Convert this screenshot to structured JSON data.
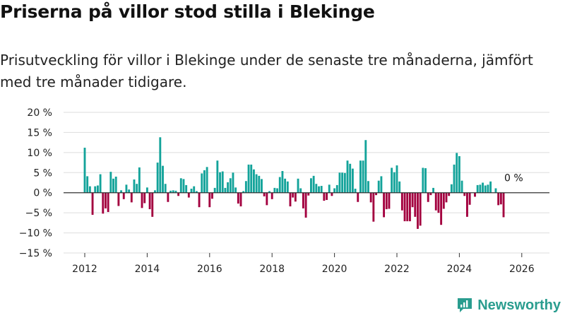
{
  "header": {
    "title": "Priserna på villor stod stilla i Blekinge",
    "subtitle": "Prisutveckling för villor i Blekinge under de senaste tre månaderna, jämfört med tre månader tidigare."
  },
  "brand": {
    "name": "Newsworthy"
  },
  "colors": {
    "positive": "#13a39a",
    "negative": "#a3003f",
    "grid": "#dddddd",
    "zero_line": "#333333",
    "brand": "#2a9d8f"
  },
  "chart_data": {
    "type": "bar",
    "title": "Priserna på villor stod stilla i Blekinge",
    "xlabel": "",
    "ylabel": "",
    "ylim": [
      -15,
      20
    ],
    "yticks": [
      -15,
      -10,
      -5,
      0,
      5,
      10,
      15,
      20
    ],
    "ytick_labels": [
      "−15 %",
      "−10 %",
      "−5 %",
      "0 %",
      "5 %",
      "10 %",
      "15 %",
      "20 %"
    ],
    "xlim": [
      2011.0,
      2027.0
    ],
    "xticks": [
      2012,
      2014,
      2016,
      2018,
      2020,
      2022,
      2024,
      2026
    ],
    "xtick_labels": [
      "2012",
      "2014",
      "2016",
      "2018",
      "2020",
      "2022",
      "2024",
      "2026"
    ],
    "start": {
      "year": 2012,
      "month": 1
    },
    "values": [
      11.2,
      4.1,
      1.6,
      -5.5,
      1.6,
      1.8,
      4.6,
      -5.2,
      -3.9,
      -4.8,
      5.2,
      3.5,
      4.0,
      -3.3,
      0.6,
      -1.6,
      2.0,
      0.8,
      -2.4,
      3.3,
      2.2,
      6.3,
      -3.8,
      -2.6,
      1.3,
      -4.1,
      -6.0,
      0.6,
      7.5,
      13.8,
      6.7,
      2.2,
      -2.3,
      0.5,
      0.6,
      0.5,
      -0.8,
      3.6,
      3.4,
      1.9,
      -1.2,
      1.0,
      1.6,
      0.4,
      -3.6,
      4.8,
      5.6,
      6.4,
      -3.6,
      -1.5,
      1.2,
      8.0,
      5.1,
      5.3,
      1.2,
      2.6,
      3.6,
      5.0,
      1.3,
      -2.7,
      -3.4,
      0.4,
      2.9,
      7.0,
      7.0,
      5.8,
      4.6,
      4.2,
      3.4,
      -0.9,
      -3.1,
      0.4,
      -1.6,
      1.2,
      1.1,
      3.9,
      5.4,
      3.5,
      2.8,
      -3.4,
      -1.2,
      -2.2,
      3.5,
      1.1,
      -3.9,
      -6.2,
      -0.7,
      3.6,
      4.2,
      2.2,
      1.6,
      1.7,
      -2.0,
      -1.8,
      2.0,
      -0.8,
      1.1,
      1.9,
      5.0,
      5.0,
      4.9,
      8.0,
      7.2,
      6.0,
      1.0,
      -2.3,
      8.0,
      8.0,
      13.1,
      2.9,
      -2.4,
      -7.2,
      -0.6,
      3.0,
      4.1,
      -6.1,
      -4.1,
      -4.0,
      6.2,
      5.1,
      6.8,
      2.8,
      -4.4,
      -7.1,
      -7.1,
      -7.1,
      -3.6,
      -6.0,
      -9.0,
      -8.2,
      6.2,
      6.1,
      -2.3,
      -0.6,
      1.2,
      -4.4,
      -5.0,
      -8.0,
      -4.0,
      -2.4,
      -0.8,
      2.1,
      7.0,
      9.9,
      9.1,
      3.0,
      -0.8,
      -6.0,
      -3.0,
      0.0,
      -1.0,
      1.9,
      2.0,
      2.5,
      1.8,
      2.0,
      2.8,
      0.0,
      1.1,
      -3.1,
      -2.9,
      -6.1
    ],
    "annotation": {
      "label": "0 %",
      "value": 0
    }
  }
}
